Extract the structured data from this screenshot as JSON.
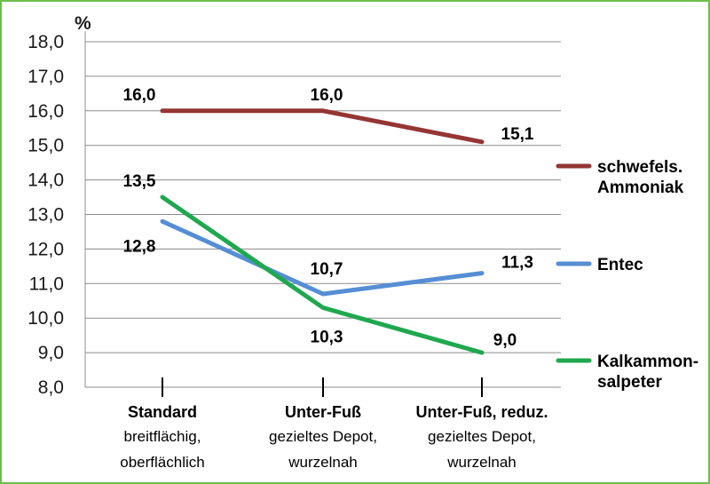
{
  "chart_data": {
    "type": "line",
    "ylabel": "%",
    "ylim": [
      8.0,
      18.0
    ],
    "yticks": [
      "8,0",
      "9,0",
      "10,0",
      "11,0",
      "12,0",
      "13,0",
      "14,0",
      "15,0",
      "16,0",
      "17,0",
      "18,0"
    ],
    "grid": true,
    "legend_position": "right",
    "categories": [
      {
        "main": "Standard",
        "sub1": "breitflächig,",
        "sub2": "oberflächlich"
      },
      {
        "main": "Unter-Fuß",
        "sub1": "gezieltes Depot,",
        "sub2": "wurzelnah"
      },
      {
        "main": "Unter-Fuß, reduz.",
        "sub1": "gezieltes Depot,",
        "sub2": "wurzelnah"
      }
    ],
    "series": [
      {
        "name_lines": [
          "schwefels.",
          "Ammoniak"
        ],
        "color": "#943634",
        "values": [
          16.0,
          16.0,
          15.1
        ],
        "labels": [
          "16,0",
          "16,0",
          "15,1"
        ]
      },
      {
        "name_lines": [
          "Entec"
        ],
        "color": "#558ed5",
        "values": [
          12.8,
          10.7,
          11.3
        ],
        "labels": [
          "12,8",
          "10,7",
          "11,3"
        ]
      },
      {
        "name_lines": [
          "Kalkammon-",
          "salpeter"
        ],
        "color": "#1fa84f",
        "values": [
          13.5,
          10.3,
          9.0
        ],
        "labels": [
          "13,5",
          "10,3",
          "9,0"
        ]
      }
    ]
  }
}
